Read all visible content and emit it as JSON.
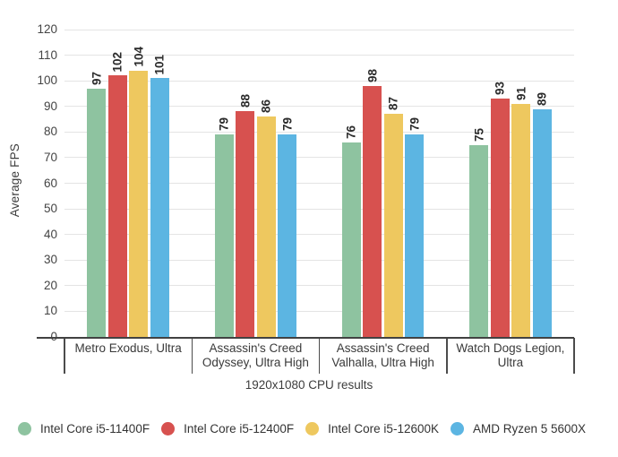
{
  "chart_data": {
    "type": "bar",
    "title": "",
    "ylabel": "Average FPS",
    "xlabel": "1920x1080 CPU results",
    "ylim": [
      0,
      120
    ],
    "ytick_step": 10,
    "grid": true,
    "legend_position": "bottom",
    "categories": [
      "Metro Exodus, Ultra",
      "Assassin's Creed Odyssey, Ultra High",
      "Assassin's Creed Valhalla, Ultra High",
      "Watch Dogs Legion, Ultra"
    ],
    "series": [
      {
        "name": "Intel Core i5-11400F",
        "color": "#8ec3a0",
        "values": [
          97,
          79,
          76,
          75
        ]
      },
      {
        "name": "Intel Core i5-12400F",
        "color": "#d7514f",
        "values": [
          102,
          88,
          98,
          93
        ]
      },
      {
        "name": "Intel Core i5-12600K",
        "color": "#eec85f",
        "values": [
          104,
          86,
          87,
          91
        ]
      },
      {
        "name": "AMD Ryzen 5 5600X",
        "color": "#5cb5e2",
        "values": [
          101,
          79,
          79,
          89
        ]
      }
    ]
  }
}
